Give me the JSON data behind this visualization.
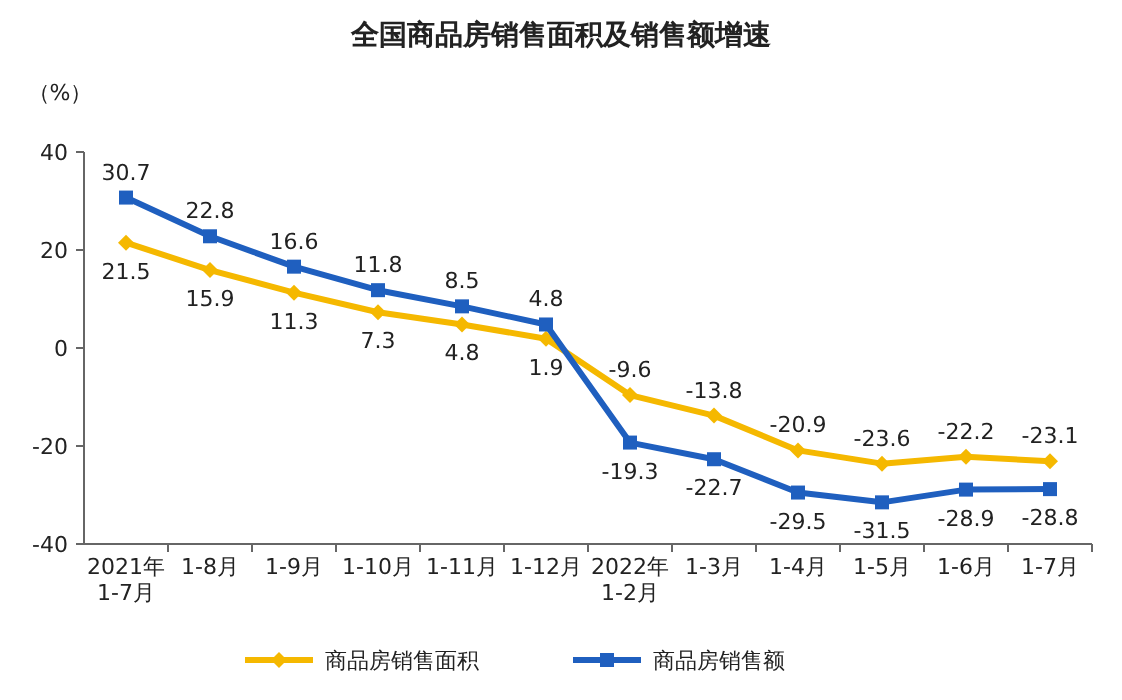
{
  "chart_data": {
    "type": "line",
    "title": "全国商品房销售面积及销售额增速",
    "ylabel": "（%）",
    "categories": [
      "2021年\n1-7月",
      "1-8月",
      "1-9月",
      "1-10月",
      "1-11月",
      "1-12月",
      "2022年\n1-2月",
      "1-3月",
      "1-4月",
      "1-5月",
      "1-6月",
      "1-7月"
    ],
    "series": [
      {
        "name": "商品房销售面积",
        "color": "#f5b800",
        "marker": "diamond",
        "values": [
          21.5,
          15.9,
          11.3,
          7.3,
          4.8,
          1.9,
          -9.6,
          -13.8,
          -20.9,
          -23.6,
          -22.2,
          -23.1
        ]
      },
      {
        "name": "商品房销售额",
        "color": "#1f5fbf",
        "marker": "square",
        "values": [
          30.7,
          22.8,
          16.6,
          11.8,
          8.5,
          4.8,
          -19.3,
          -22.7,
          -29.5,
          -31.5,
          -28.9,
          -28.8
        ]
      }
    ],
    "ylim": [
      -40,
      40
    ],
    "yticks": [
      -40,
      -20,
      0,
      20,
      40
    ],
    "data_labels": true,
    "legend": "bottom",
    "grid": false
  }
}
